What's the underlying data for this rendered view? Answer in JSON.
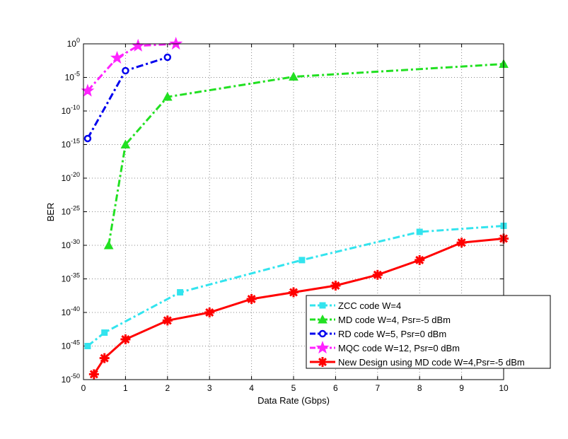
{
  "chart_data": {
    "type": "line",
    "title": "",
    "xlabel": "Data Rate (Gbps)",
    "ylabel": "BER",
    "xlim": [
      0,
      10
    ],
    "ylim_log10": [
      -50,
      0
    ],
    "yscale": "log",
    "grid": true,
    "legend_position": "bottom-right",
    "x_ticks": [
      0,
      1,
      2,
      3,
      4,
      5,
      6,
      7,
      8,
      9,
      10
    ],
    "y_tick_exponents": [
      0,
      -5,
      -10,
      -15,
      -20,
      -25,
      -30,
      -35,
      -40,
      -45,
      -50
    ],
    "y_tick_base": "10",
    "series": [
      {
        "name": "ZCC code W=4",
        "color": "#33e4ee",
        "line": "dashdot",
        "marker": "square",
        "x": [
          0.1,
          0.5,
          2.3,
          5.2,
          8,
          10
        ],
        "log10_y": [
          -45,
          -43,
          -37,
          -32.2,
          -28,
          -27.1
        ]
      },
      {
        "name": "MD code W=4, Psr=-5 dBm",
        "color": "#22e022",
        "line": "dashdot",
        "marker": "triangle",
        "x": [
          0.6,
          1,
          2,
          5,
          10
        ],
        "log10_y": [
          -30,
          -15,
          -7.9,
          -4.9,
          -3
        ]
      },
      {
        "name": "RD code W=5, Psr=0 dBm",
        "color": "#0000ee",
        "line": "dashdot",
        "marker": "circle",
        "x": [
          0.1,
          1,
          2
        ],
        "log10_y": [
          -14.1,
          -4,
          -2
        ]
      },
      {
        "name": "MQC code W=12, Psr=0 dBm",
        "color": "#ff22ff",
        "line": "dashdot",
        "marker": "star",
        "x": [
          0.1,
          0.8,
          1.3,
          2.2
        ],
        "log10_y": [
          -7,
          -2.1,
          -0.3,
          0
        ]
      },
      {
        "name": "New Design using MD code W=4,Psr=-5 dBm",
        "color": "#ff0000",
        "line": "solid",
        "marker": "asterisk",
        "x": [
          0.25,
          0.5,
          1,
          2,
          3,
          4,
          5,
          6,
          7,
          8,
          9,
          10
        ],
        "log10_y": [
          -49.2,
          -46.8,
          -44,
          -41.2,
          -40,
          -38,
          -37,
          -36,
          -34.4,
          -32.2,
          -29.6,
          -29
        ]
      }
    ]
  }
}
